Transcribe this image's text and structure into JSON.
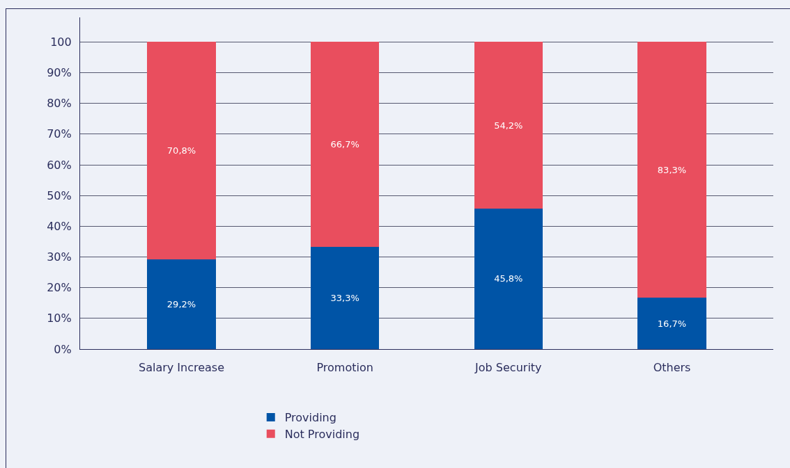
{
  "chart_data": {
    "type": "bar",
    "stacked": true,
    "categories": [
      "Salary Increase",
      "Promotion",
      "Job Security",
      "Others"
    ],
    "series": [
      {
        "name": "Providing",
        "color": "#0054a6",
        "values": [
          29.2,
          33.3,
          45.8,
          16.7
        ],
        "value_labels": [
          "29,2%",
          "33,3%",
          "45,8%",
          "16,7%"
        ]
      },
      {
        "name": "Not Providing",
        "color": "#e94e5e",
        "values": [
          70.8,
          66.7,
          54.2,
          83.3
        ],
        "value_labels": [
          "70,8%",
          "66,7%",
          "54,2%",
          "83,3%"
        ]
      }
    ],
    "ylim": [
      0,
      108
    ],
    "yticks": [
      {
        "value": 0,
        "label": "0%"
      },
      {
        "value": 10,
        "label": "10%"
      },
      {
        "value": 20,
        "label": "20%"
      },
      {
        "value": 30,
        "label": "30%"
      },
      {
        "value": 40,
        "label": "40%"
      },
      {
        "value": 50,
        "label": "50%"
      },
      {
        "value": 60,
        "label": "60%"
      },
      {
        "value": 70,
        "label": "70%"
      },
      {
        "value": 80,
        "label": "80%"
      },
      {
        "value": 90,
        "label": "90%"
      },
      100
    ],
    "grid": "y",
    "legend": "bottom"
  }
}
